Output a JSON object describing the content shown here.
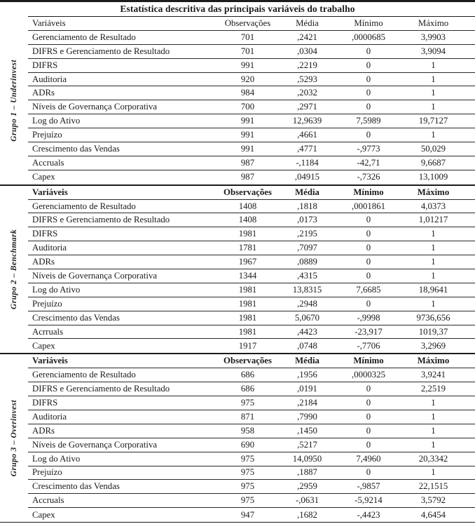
{
  "ink_color": "#1b1b1b",
  "table": {
    "title": "Estatística descritiva das principais variáveis do trabalho",
    "columns": [
      "Variáveis",
      "Observações",
      "Média",
      "Mínimo",
      "Máximo"
    ],
    "groups": [
      {
        "label": "Grupo 1 – Underinvest",
        "rows": [
          [
            "Gerenciamento de Resultado",
            "701",
            ",2421",
            ",0000685",
            "3,9903"
          ],
          [
            "DIFRS e Gerenciamento de Resultado",
            "701",
            ",0304",
            "0",
            "3,9094"
          ],
          [
            "DIFRS",
            "991",
            ",2219",
            "0",
            "1"
          ],
          [
            "Auditoria",
            "920",
            ",5293",
            "0",
            "1"
          ],
          [
            "ADRs",
            "984",
            ",2032",
            "0",
            "1"
          ],
          [
            "Níveis de Governança Corporativa",
            "700",
            ",2971",
            "0",
            "1"
          ],
          [
            "Log do Ativo",
            "991",
            "12,9639",
            "7,5989",
            "19,7127"
          ],
          [
            "Prejuízo",
            "991",
            ",4661",
            "0",
            "1"
          ],
          [
            "Crescimento das Vendas",
            "991",
            ",4771",
            "-,9773",
            "50,029"
          ],
          [
            "Accruals",
            "987",
            "-,1184",
            "-42,71",
            "9,6687"
          ],
          [
            "Capex",
            "987",
            ",04915",
            "-,7326",
            "13,1009"
          ]
        ]
      },
      {
        "label": "Grupo 2 – Benchmark",
        "rows": [
          [
            "Gerenciamento de Resultado",
            "1408",
            ",1818",
            ",0001861",
            "4,0373"
          ],
          [
            "DIFRS e Gerenciamento de Resultado",
            "1408",
            ",0173",
            "0",
            "1,01217"
          ],
          [
            "DIFRS",
            "1981",
            ",2195",
            "0",
            "1"
          ],
          [
            "Auditoria",
            "1781",
            ",7097",
            "0",
            "1"
          ],
          [
            "ADRs",
            "1967",
            ",0889",
            "0",
            "1"
          ],
          [
            "Níveis de Governança Corporativa",
            "1344",
            ",4315",
            "0",
            "1"
          ],
          [
            "Log do Ativo",
            "1981",
            "13,8315",
            "7,6685",
            "18,9641"
          ],
          [
            "Prejuízo",
            "1981",
            ",2948",
            "0",
            "1"
          ],
          [
            "Crescimento das Vendas",
            "1981",
            "5,0670",
            "-,9998",
            "9736,656"
          ],
          [
            "Acrruals",
            "1981",
            ",4423",
            "-23,917",
            "1019,37"
          ],
          [
            "Capex",
            "1917",
            ",0748",
            "-,7706",
            "3,2969"
          ]
        ]
      },
      {
        "label": "Grupo 3 – Overinvest",
        "rows": [
          [
            "Gerenciamento de Resultado",
            "686",
            ",1956",
            ",0000325",
            "3,9241"
          ],
          [
            "DIFRS e Gerenciamento de Resultado",
            "686",
            ",0191",
            "0",
            "2,2519"
          ],
          [
            "DIFRS",
            "975",
            ",2184",
            "0",
            "1"
          ],
          [
            "Auditoria",
            "871",
            ",7990",
            "0",
            "1"
          ],
          [
            "ADRs",
            "958",
            ",1450",
            "0",
            "1"
          ],
          [
            "Níveis de Governança Corporativa",
            "690",
            ",5217",
            "0",
            "1"
          ],
          [
            "Log do Ativo",
            "975",
            "14,0950",
            "7,4960",
            "20,3342"
          ],
          [
            "Prejuízo",
            "975",
            ",1887",
            "0",
            "1"
          ],
          [
            "Crescimento das Vendas",
            "975",
            ",2959",
            "-,9857",
            "22,1515"
          ],
          [
            "Accruals",
            "975",
            "-,0631",
            "-5,9214",
            "3,5792"
          ],
          [
            "Capex",
            "947",
            ",1682",
            "-,4423",
            "4,6454"
          ]
        ]
      }
    ]
  }
}
